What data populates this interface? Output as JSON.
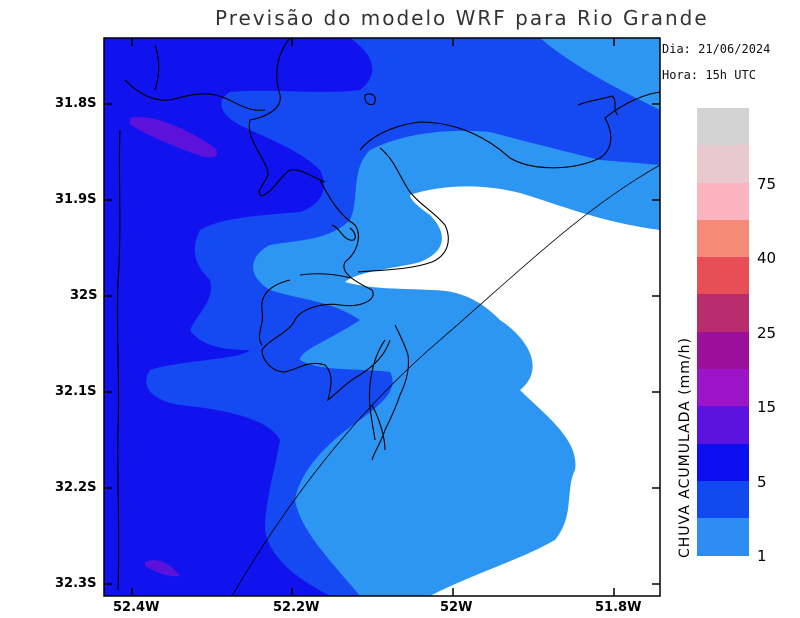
{
  "title": "Previsão do modelo WRF para Rio Grande",
  "info": {
    "date": "Dia: 21/06/2024",
    "time": "Hora: 15h UTC"
  },
  "axes": {
    "y_labels": [
      "31.8S",
      "31.9S",
      "32S",
      "32.1S",
      "32.2S",
      "32.3S"
    ],
    "x_labels": [
      "52.4W",
      "52.2W",
      "52W",
      "51.8W"
    ]
  },
  "legend": {
    "title": "CHUVA ACUMULADA (mm/h)",
    "ticks": [
      "75",
      "40",
      "25",
      "15",
      "5",
      "1"
    ],
    "colors": [
      "#d3d3d3",
      "#e8c9cf",
      "#fbb3c0",
      "#f58a78",
      "#e84e55",
      "#b92c6e",
      "#9c0f9a",
      "#9b14c8",
      "#5c12de",
      "#0c0ef0",
      "#1149f0",
      "#2d8cf2"
    ]
  },
  "fills": {
    "light": "#2d96f2",
    "mid": "#1549f2",
    "deep": "#1013ee",
    "purple": "#5d12dc",
    "white": "#ffffff"
  }
}
